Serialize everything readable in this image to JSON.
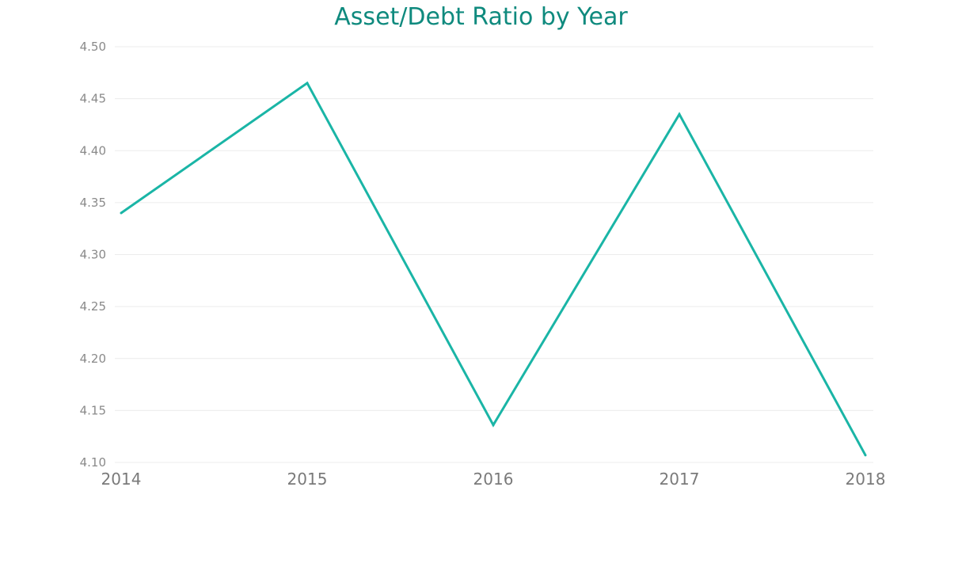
{
  "chart_data": {
    "type": "line",
    "title": "Asset/Debt Ratio by Year",
    "xlabel": "",
    "ylabel": "",
    "categories": [
      "2014",
      "2015",
      "2016",
      "2017",
      "2018"
    ],
    "series": [
      {
        "values": [
          4.34,
          4.465,
          4.136,
          4.435,
          4.107
        ]
      }
    ],
    "ylim": [
      4.1,
      4.5
    ],
    "yticks": [
      "4.50",
      "4.45",
      "4.40",
      "4.35",
      "4.30",
      "4.25",
      "4.20",
      "4.15",
      "4.10"
    ],
    "grid": true,
    "line_color": "#1ab5a6",
    "title_color": "#0f8a7e"
  }
}
